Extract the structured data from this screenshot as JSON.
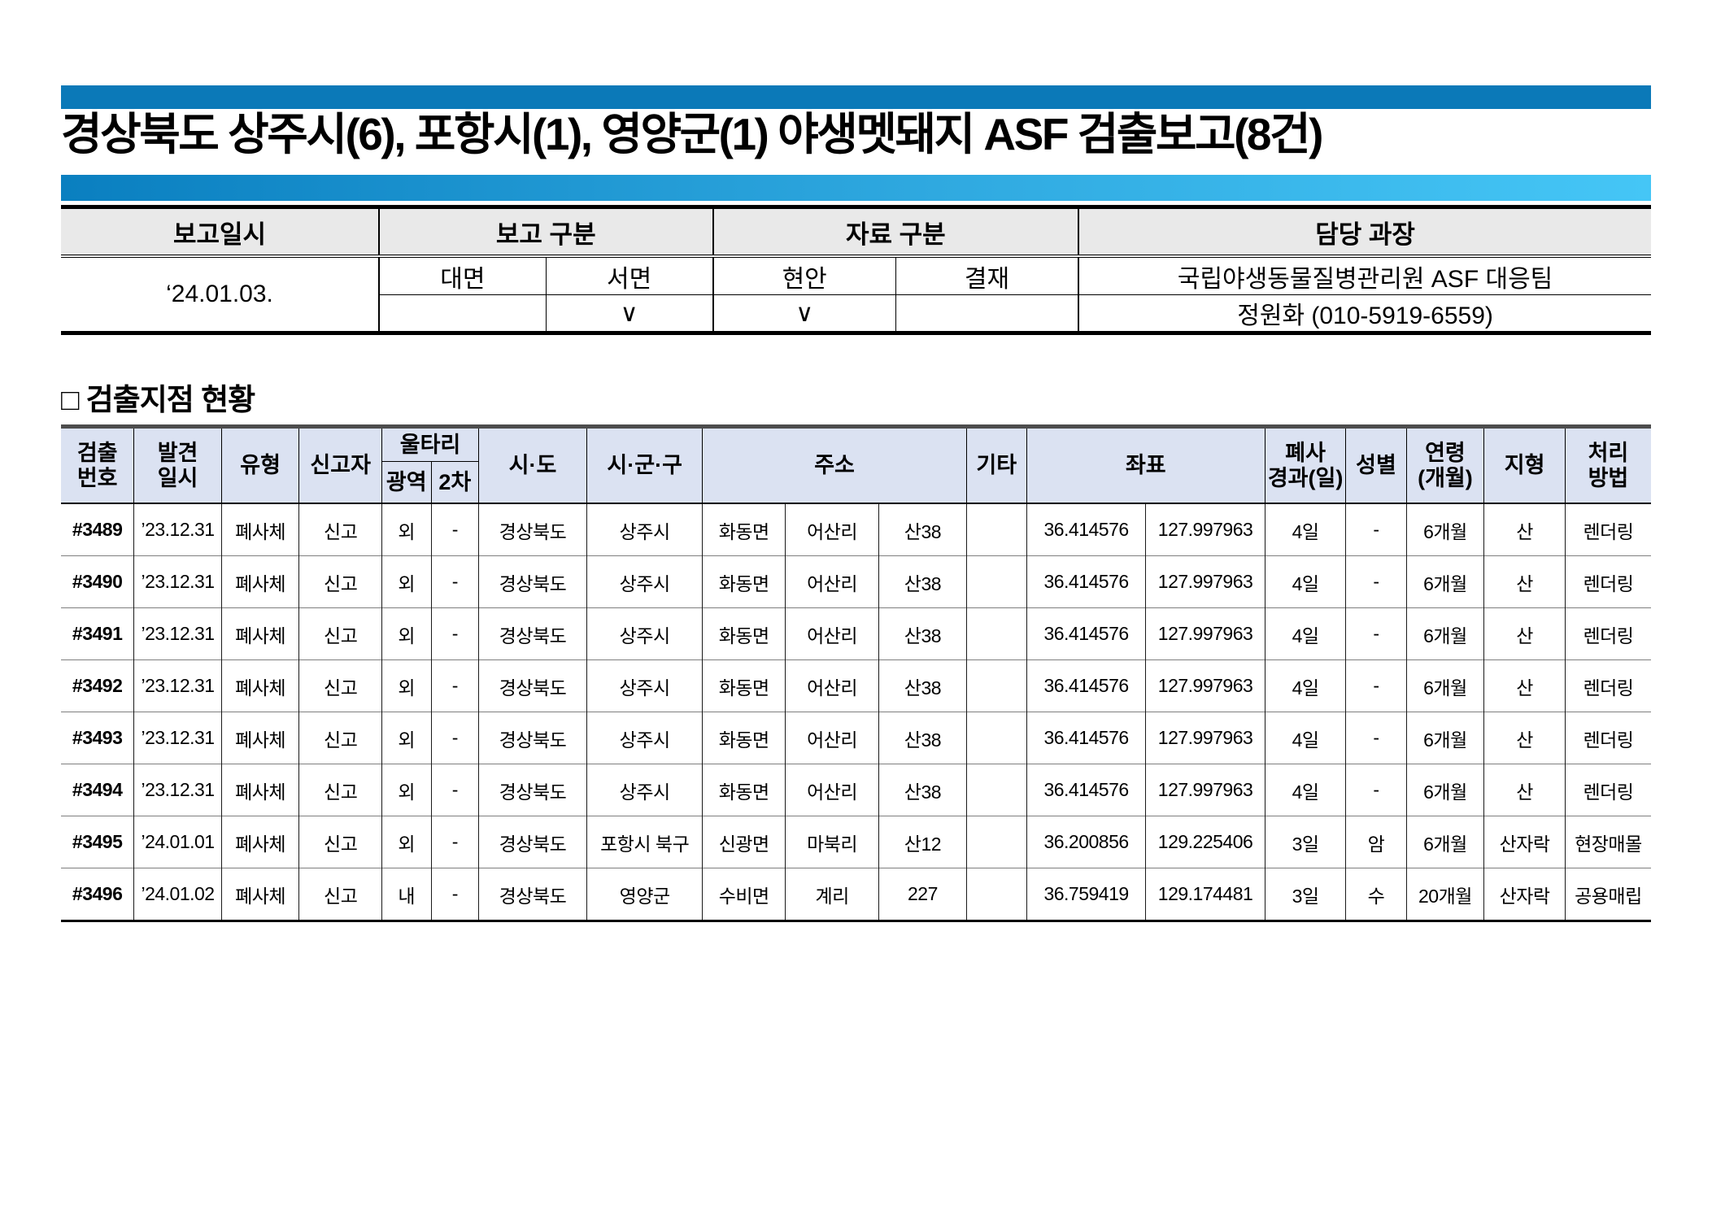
{
  "page": {
    "title": "경상북도 상주시(6), 포항시(1), 영양군(1) 야생멧돼지 ASF 검출보고(8건)"
  },
  "report_info": {
    "col_date": "보고일시",
    "col_report_type": "보고 구분",
    "col_data_type": "자료 구분",
    "col_manager": "담당 과장",
    "date_value": "‘24.01.03.",
    "report_face_label": "대면",
    "report_written_label": "서면",
    "report_face_check": "",
    "report_written_check": "∨",
    "data_pending_label": "현안",
    "data_approval_label": "결재",
    "data_pending_check": "∨",
    "data_approval_check": "",
    "manager_team": "국립야생동물질병관리원 ASF 대응팀",
    "manager_contact": "정원화 (010-5919-6559)"
  },
  "section_heading": "□ 검출지점 현황",
  "detection_table": {
    "headers": {
      "detect_no": "검출\n번호",
      "found_date": "발견\n일시",
      "type": "유형",
      "reporter": "신고자",
      "fence": "울타리",
      "fence_wide": "광역",
      "fence_2nd": "2차",
      "sido": "시·도",
      "sigungu": "시·군·구",
      "address": "주소",
      "etc": "기타",
      "coords": "좌표",
      "death_days": "폐사\n경과(일)",
      "sex": "성별",
      "age": "연령\n(개월)",
      "terrain": "지형",
      "method": "처리\n방법"
    },
    "rows": [
      [
        "#3489",
        "’23.12.31",
        "폐사체",
        "신고",
        "외",
        "-",
        "경상북도",
        "상주시",
        "화동면",
        "어산리",
        "산38",
        "",
        "36.414576",
        "127.997963",
        "4일",
        "-",
        "6개월",
        "산",
        "렌더링"
      ],
      [
        "#3490",
        "’23.12.31",
        "폐사체",
        "신고",
        "외",
        "-",
        "경상북도",
        "상주시",
        "화동면",
        "어산리",
        "산38",
        "",
        "36.414576",
        "127.997963",
        "4일",
        "-",
        "6개월",
        "산",
        "렌더링"
      ],
      [
        "#3491",
        "’23.12.31",
        "폐사체",
        "신고",
        "외",
        "-",
        "경상북도",
        "상주시",
        "화동면",
        "어산리",
        "산38",
        "",
        "36.414576",
        "127.997963",
        "4일",
        "-",
        "6개월",
        "산",
        "렌더링"
      ],
      [
        "#3492",
        "’23.12.31",
        "폐사체",
        "신고",
        "외",
        "-",
        "경상북도",
        "상주시",
        "화동면",
        "어산리",
        "산38",
        "",
        "36.414576",
        "127.997963",
        "4일",
        "-",
        "6개월",
        "산",
        "렌더링"
      ],
      [
        "#3493",
        "’23.12.31",
        "폐사체",
        "신고",
        "외",
        "-",
        "경상북도",
        "상주시",
        "화동면",
        "어산리",
        "산38",
        "",
        "36.414576",
        "127.997963",
        "4일",
        "-",
        "6개월",
        "산",
        "렌더링"
      ],
      [
        "#3494",
        "’23.12.31",
        "폐사체",
        "신고",
        "외",
        "-",
        "경상북도",
        "상주시",
        "화동면",
        "어산리",
        "산38",
        "",
        "36.414576",
        "127.997963",
        "4일",
        "-",
        "6개월",
        "산",
        "렌더링"
      ],
      [
        "#3495",
        "’24.01.01",
        "폐사체",
        "신고",
        "외",
        "-",
        "경상북도",
        "포항시 북구",
        "신광면",
        "마북리",
        "산12",
        "",
        "36.200856",
        "129.225406",
        "3일",
        "암",
        "6개월",
        "산자락",
        "현장매몰"
      ],
      [
        "#3496",
        "’24.01.02",
        "폐사체",
        "신고",
        "내",
        "-",
        "경상북도",
        "영양군",
        "수비면",
        "계리",
        "227",
        "",
        "36.759419",
        "129.174481",
        "3일",
        "수",
        "20개월",
        "산자락",
        "공용매립"
      ]
    ]
  }
}
